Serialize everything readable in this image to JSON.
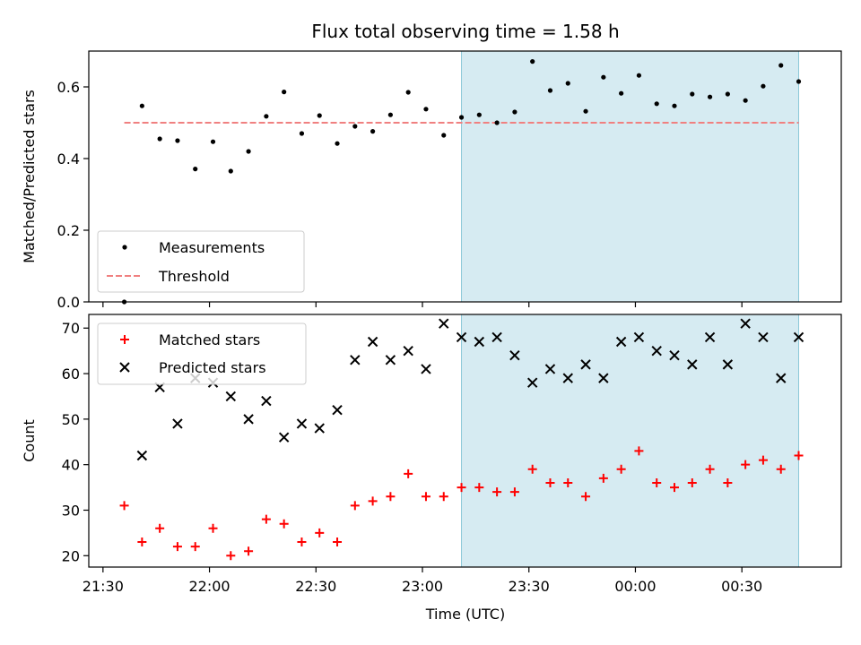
{
  "title": "Flux total observing time = 1.58 h",
  "xlabel": "Time (UTC)",
  "colors": {
    "measurement": "#000000",
    "threshold": "#f08080",
    "matched": "#ff0000",
    "predicted": "#000000",
    "highlight": "#add8e6"
  },
  "chart_data": [
    {
      "type": "scatter",
      "ylabel": "Matched/Predicted stars",
      "ylim": [
        0,
        0.7
      ],
      "yticks": [
        0.0,
        0.2,
        0.4,
        0.6
      ],
      "ytick_labels": [
        "0.0",
        "0.2",
        "0.4",
        "0.6"
      ],
      "xlim": [
        "21:26",
        "00:58"
      ],
      "highlight_span": [
        "23:11",
        "00:46"
      ],
      "threshold": 0.5,
      "legend_position": "lower-left",
      "legend": [
        "Measurements",
        "Threshold"
      ],
      "series": [
        {
          "name": "Measurements",
          "x": [
            "21:36",
            "21:41",
            "21:46",
            "21:51",
            "21:56",
            "22:01",
            "22:06",
            "22:11",
            "22:16",
            "22:21",
            "22:26",
            "22:31",
            "22:36",
            "22:41",
            "22:46",
            "22:51",
            "22:56",
            "23:01",
            "23:06",
            "23:11",
            "23:16",
            "23:21",
            "23:26",
            "23:31",
            "23:36",
            "23:41",
            "23:46",
            "23:51",
            "23:56",
            "00:01",
            "00:06",
            "00:11",
            "00:16",
            "00:21",
            "00:26",
            "00:31",
            "00:36",
            "00:41",
            "00:46"
          ],
          "values": [
            0.0,
            0.547,
            0.455,
            0.45,
            0.371,
            0.447,
            0.365,
            0.42,
            0.518,
            0.586,
            0.47,
            0.52,
            0.442,
            0.49,
            0.476,
            0.522,
            0.585,
            0.538,
            0.465,
            0.515,
            0.522,
            0.5,
            0.53,
            0.671,
            0.59,
            0.61,
            0.532,
            0.627,
            0.582,
            0.632,
            0.553,
            0.547,
            0.58,
            0.572,
            0.58,
            0.562,
            0.602,
            0.66,
            0.615
          ]
        }
      ]
    },
    {
      "type": "scatter",
      "ylabel": "Count",
      "ylim": [
        17.5,
        73
      ],
      "yticks": [
        20,
        30,
        40,
        50,
        60,
        70
      ],
      "ytick_labels": [
        "20",
        "30",
        "40",
        "50",
        "60",
        "70"
      ],
      "xlim": [
        "21:26",
        "00:58"
      ],
      "xticks": [
        "21:30",
        "22:00",
        "22:30",
        "23:00",
        "23:30",
        "00:00",
        "00:30"
      ],
      "xtick_labels": [
        "21:30",
        "22:00",
        "22:30",
        "23:00",
        "23:30",
        "00:00",
        "00:30"
      ],
      "highlight_span": [
        "23:11",
        "00:46"
      ],
      "legend_position": "upper-left",
      "legend": [
        "Matched stars",
        "Predicted stars"
      ],
      "series": [
        {
          "name": "Matched stars",
          "x": [
            "21:36",
            "21:41",
            "21:46",
            "21:51",
            "21:56",
            "22:01",
            "22:06",
            "22:11",
            "22:16",
            "22:21",
            "22:26",
            "22:31",
            "22:36",
            "22:41",
            "22:46",
            "22:51",
            "22:56",
            "23:01",
            "23:06",
            "23:11",
            "23:16",
            "23:21",
            "23:26",
            "23:31",
            "23:36",
            "23:41",
            "23:46",
            "23:51",
            "23:56",
            "00:01",
            "00:06",
            "00:11",
            "00:16",
            "00:21",
            "00:26",
            "00:31",
            "00:36",
            "00:41",
            "00:46"
          ],
          "values": [
            31,
            23,
            26,
            22,
            22,
            26,
            20,
            21,
            28,
            27,
            23,
            25,
            23,
            31,
            32,
            33,
            38,
            33,
            33,
            35,
            35,
            34,
            34,
            39,
            36,
            36,
            33,
            37,
            39,
            43,
            36,
            35,
            36,
            39,
            36,
            40,
            41,
            39,
            42
          ]
        },
        {
          "name": "Predicted stars",
          "x": [
            "21:41",
            "21:46",
            "21:51",
            "21:56",
            "22:01",
            "22:06",
            "22:11",
            "22:16",
            "22:21",
            "22:26",
            "22:31",
            "22:36",
            "22:41",
            "22:46",
            "22:51",
            "22:56",
            "23:01",
            "23:06",
            "23:11",
            "23:16",
            "23:21",
            "23:26",
            "23:31",
            "23:36",
            "23:41",
            "23:46",
            "23:51",
            "23:56",
            "00:01",
            "00:06",
            "00:11",
            "00:16",
            "00:21",
            "00:26",
            "00:31",
            "00:36",
            "00:41",
            "00:46"
          ],
          "values": [
            42,
            57,
            49,
            59,
            58,
            55,
            50,
            54,
            46,
            49,
            48,
            52,
            63,
            67,
            63,
            65,
            61,
            71,
            68,
            67,
            68,
            64,
            58,
            61,
            59,
            62,
            59,
            67,
            68,
            65,
            64,
            62,
            68,
            62,
            71,
            68,
            59,
            68
          ]
        }
      ]
    }
  ]
}
